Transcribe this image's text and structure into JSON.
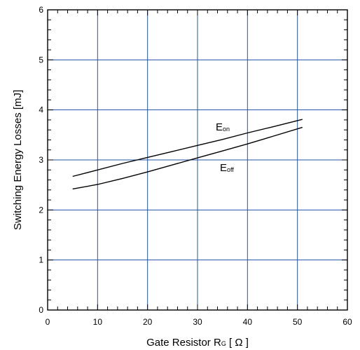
{
  "chart_data": {
    "type": "line",
    "xlabel": "Gate Resistor",
    "xlabel_symbol": "R",
    "xlabel_symbol_sub": "G",
    "xlabel_unit": "[ Ω ]",
    "ylabel": "Switching Energy Losses [mJ]",
    "xlim": [
      0,
      60
    ],
    "ylim": [
      0,
      6
    ],
    "x_ticks": [
      "0",
      "10",
      "20",
      "30",
      "40",
      "50",
      "60"
    ],
    "y_ticks": [
      "0",
      "1",
      "2",
      "3",
      "4",
      "5",
      "6"
    ],
    "grid": true,
    "grid_color": "#2255aa",
    "series": [
      {
        "name": "E",
        "name_sub": "on",
        "x": [
          5,
          10,
          15,
          20,
          25,
          30,
          35,
          40,
          45,
          51
        ],
        "y": [
          2.67,
          2.8,
          2.93,
          3.05,
          3.17,
          3.29,
          3.41,
          3.54,
          3.66,
          3.81
        ]
      },
      {
        "name": "E",
        "name_sub": "off",
        "x": [
          5,
          10,
          15,
          20,
          25,
          30,
          35,
          40,
          45,
          51
        ],
        "y": [
          2.42,
          2.51,
          2.63,
          2.76,
          2.9,
          3.04,
          3.18,
          3.32,
          3.47,
          3.65
        ]
      }
    ]
  }
}
